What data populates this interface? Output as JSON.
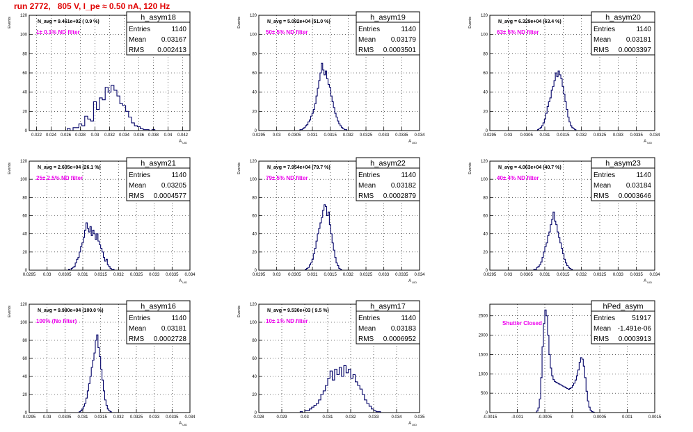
{
  "page": {
    "title": "run 2772,   805 V, I_pe ≈ 0.50 nA, 120 Hz"
  },
  "chart_data": [
    {
      "type": "bar",
      "histogram": "h_asym18",
      "stats": {
        "entries": "1140",
        "mean": "0.03167",
        "rms": "0.002413"
      },
      "navg_label": "N_avg = 9.461e+02 ( 0.9 %)",
      "filter_label": "1± 0.1% ND filter",
      "ylabel": "Events",
      "xlabel": "A_{UID}",
      "ylim": [
        0,
        120
      ],
      "yticks": [
        0,
        20,
        40,
        60,
        80,
        100,
        120
      ],
      "xlim": [
        0.021,
        0.043
      ],
      "xticks": [
        0.022,
        0.024,
        0.026,
        0.028,
        0.03,
        0.032,
        0.034,
        0.036,
        0.038,
        0.04,
        0.042
      ],
      "xtick_labels": [
        "0.022",
        "0.024",
        "0.026",
        "0.028",
        "0.03",
        "0.032",
        "0.034",
        "0.036",
        "0.038",
        "0.04",
        "0.042"
      ],
      "bin_start": 0.0262,
      "bin_width": 0.0004,
      "values": [
        2,
        0,
        3,
        3,
        7,
        5,
        15,
        12,
        10,
        30,
        22,
        34,
        32,
        45,
        40,
        47,
        42,
        36,
        28,
        26,
        20,
        14,
        8,
        5,
        4,
        2,
        1,
        1,
        0,
        1
      ]
    },
    {
      "type": "bar",
      "histogram": "h_asym19",
      "stats": {
        "entries": "1140",
        "mean": "0.03179",
        "rms": "0.0003501"
      },
      "navg_label": "N_avg = 5.092e+04 (51.0 %)",
      "filter_label": "50± 5% ND filter",
      "ylabel": "Events",
      "xlabel": "A_{UID}",
      "ylim": [
        0,
        120
      ],
      "yticks": [
        0,
        20,
        40,
        60,
        80,
        100,
        120
      ],
      "xlim": [
        0.0295,
        0.034
      ],
      "xticks": [
        0.0295,
        0.03,
        0.0305,
        0.031,
        0.0315,
        0.032,
        0.0325,
        0.033,
        0.0335,
        0.034
      ],
      "xtick_labels": [
        "0.0295",
        "0.03",
        "0.0305",
        "0.031",
        "0.0315",
        "0.032",
        "0.0325",
        "0.033",
        "0.0335",
        "0.034"
      ],
      "bin_start": 0.03065,
      "bin_width": 3.75e-05,
      "values": [
        1,
        1,
        2,
        3,
        5,
        6,
        9,
        11,
        15,
        18,
        22,
        28,
        36,
        44,
        52,
        60,
        70,
        63,
        58,
        62,
        54,
        48,
        45,
        36,
        30,
        24,
        18,
        14,
        10,
        7,
        5,
        3,
        2,
        1,
        1
      ]
    },
    {
      "type": "bar",
      "histogram": "h_asym20",
      "stats": {
        "entries": "1140",
        "mean": "0.03181",
        "rms": "0.0003397"
      },
      "navg_label": "N_avg = 6.329e+04 (63.4 %)",
      "filter_label": "63± 5% ND filter",
      "ylabel": "Events",
      "xlabel": "A_{UID}",
      "ylim": [
        0,
        120
      ],
      "yticks": [
        0,
        20,
        40,
        60,
        80,
        100,
        120
      ],
      "xlim": [
        0.0295,
        0.034
      ],
      "xticks": [
        0.0295,
        0.03,
        0.0305,
        0.031,
        0.0315,
        0.032,
        0.0325,
        0.033,
        0.0335,
        0.034
      ],
      "xtick_labels": [
        "0.0295",
        "0.03",
        "0.0305",
        "0.031",
        "0.0315",
        "0.032",
        "0.0325",
        "0.033",
        "0.0335",
        "0.034"
      ],
      "bin_start": 0.0308,
      "bin_width": 3.75e-05,
      "values": [
        1,
        2,
        3,
        5,
        8,
        12,
        18,
        25,
        30,
        34,
        42,
        46,
        52,
        60,
        56,
        62,
        58,
        54,
        46,
        38,
        30,
        22,
        14,
        9,
        5,
        3,
        2,
        1
      ]
    },
    {
      "type": "bar",
      "histogram": "h_asym21",
      "stats": {
        "entries": "1140",
        "mean": "0.03205",
        "rms": "0.0004577"
      },
      "navg_label": "N_avg = 2.605e+04 (26.1 %)",
      "filter_label": "25± 2.5% ND filter",
      "ylabel": "Events",
      "xlabel": "A_{UID}",
      "ylim": [
        0,
        120
      ],
      "yticks": [
        0,
        20,
        40,
        60,
        80,
        100,
        120
      ],
      "xlim": [
        0.0295,
        0.034
      ],
      "xticks": [
        0.0295,
        0.03,
        0.0305,
        0.031,
        0.0315,
        0.032,
        0.0325,
        0.033,
        0.0335,
        0.034
      ],
      "xtick_labels": [
        "0.0295",
        "0.03",
        "0.0305",
        "0.031",
        "0.0315",
        "0.032",
        "0.0325",
        "0.033",
        "0.0335",
        "0.034"
      ],
      "bin_start": 0.0306,
      "bin_width": 3.75e-05,
      "values": [
        1,
        0,
        2,
        3,
        4,
        8,
        12,
        14,
        20,
        26,
        30,
        36,
        44,
        52,
        46,
        42,
        48,
        38,
        44,
        40,
        34,
        40,
        32,
        28,
        24,
        20,
        14,
        10,
        12,
        6,
        4,
        2,
        1,
        1
      ]
    },
    {
      "type": "bar",
      "histogram": "h_asym22",
      "stats": {
        "entries": "1140",
        "mean": "0.03182",
        "rms": "0.0002879"
      },
      "navg_label": "N_avg = 7.954e+04 (79.7 %)",
      "filter_label": "79± 5% ND filter",
      "ylabel": "Events",
      "xlabel": "A_{UID}",
      "ylim": [
        0,
        120
      ],
      "yticks": [
        0,
        20,
        40,
        60,
        80,
        100,
        120
      ],
      "xlim": [
        0.0295,
        0.034
      ],
      "xticks": [
        0.0295,
        0.03,
        0.0305,
        0.031,
        0.0315,
        0.032,
        0.0325,
        0.033,
        0.0335,
        0.034
      ],
      "xtick_labels": [
        "0.0295",
        "0.03",
        "0.0305",
        "0.031",
        "0.0315",
        "0.032",
        "0.0325",
        "0.033",
        "0.0335",
        "0.034"
      ],
      "bin_start": 0.0308,
      "bin_width": 3.75e-05,
      "values": [
        1,
        2,
        3,
        6,
        8,
        12,
        18,
        24,
        32,
        40,
        46,
        52,
        58,
        66,
        72,
        70,
        60,
        64,
        50,
        40,
        30,
        22,
        14,
        8,
        5,
        2,
        1
      ]
    },
    {
      "type": "bar",
      "histogram": "h_asym23",
      "stats": {
        "entries": "1140",
        "mean": "0.03184",
        "rms": "0.0003646"
      },
      "navg_label": "N_avg = 4.063e+04 (40.7 %)",
      "filter_label": "40± 4% ND filter",
      "ylabel": "Events",
      "xlabel": "A_{UID}",
      "ylim": [
        0,
        120
      ],
      "yticks": [
        0,
        20,
        40,
        60,
        80,
        100,
        120
      ],
      "xlim": [
        0.0295,
        0.034
      ],
      "xticks": [
        0.0295,
        0.03,
        0.0305,
        0.031,
        0.0315,
        0.032,
        0.0325,
        0.033,
        0.0335,
        0.034
      ],
      "xtick_labels": [
        "0.0295",
        "0.03",
        "0.0305",
        "0.031",
        "0.0315",
        "0.032",
        "0.0325",
        "0.033",
        "0.0335",
        "0.034"
      ],
      "bin_start": 0.0307,
      "bin_width": 3.75e-05,
      "values": [
        1,
        1,
        3,
        4,
        6,
        9,
        14,
        20,
        26,
        30,
        38,
        42,
        50,
        56,
        64,
        54,
        50,
        42,
        36,
        30,
        24,
        18,
        12,
        8,
        5,
        3,
        2,
        1
      ]
    },
    {
      "type": "bar",
      "histogram": "h_asym16",
      "stats": {
        "entries": "1140",
        "mean": "0.03181",
        "rms": "0.0002728"
      },
      "navg_label": "N_avg = 9.980e+04 (100.0 %)",
      "filter_label": "100% (No filter)",
      "ylabel": "Events",
      "xlabel": "A_{UID}",
      "ylim": [
        0,
        120
      ],
      "yticks": [
        0,
        20,
        40,
        60,
        80,
        100,
        120
      ],
      "xlim": [
        0.0295,
        0.034
      ],
      "xticks": [
        0.0295,
        0.03,
        0.0305,
        0.031,
        0.0315,
        0.032,
        0.0325,
        0.033,
        0.0335,
        0.034
      ],
      "xtick_labels": [
        "0.0295",
        "0.03",
        "0.0305",
        "0.031",
        "0.0315",
        "0.032",
        "0.0325",
        "0.033",
        "0.0335",
        "0.034"
      ],
      "bin_start": 0.0309,
      "bin_width": 3.75e-05,
      "values": [
        1,
        2,
        4,
        7,
        10,
        16,
        24,
        32,
        40,
        50,
        58,
        66,
        80,
        86,
        72,
        62,
        48,
        36,
        24,
        14,
        8,
        4,
        2,
        1
      ]
    },
    {
      "type": "bar",
      "histogram": "h_asym17",
      "stats": {
        "entries": "1140",
        "mean": "0.03183",
        "rms": "0.0006952"
      },
      "navg_label": "N_avg = 9.530e+03 ( 9.5 %)",
      "filter_label": "10± 1% ND filter",
      "ylabel": "Events",
      "xlabel": "A_{UID}",
      "ylim": [
        0,
        120
      ],
      "yticks": [
        0,
        20,
        40,
        60,
        80,
        100,
        120
      ],
      "xlim": [
        0.028,
        0.035
      ],
      "xticks": [
        0.028,
        0.029,
        0.03,
        0.031,
        0.032,
        0.033,
        0.034,
        0.035
      ],
      "xtick_labels": [
        "0.028",
        "0.029",
        "0.03",
        "0.031",
        "0.032",
        "0.033",
        "0.034",
        "0.035"
      ],
      "bin_start": 0.0298,
      "bin_width": 0.0001,
      "values": [
        1,
        0,
        2,
        2,
        4,
        6,
        8,
        10,
        14,
        20,
        24,
        30,
        38,
        46,
        36,
        48,
        42,
        50,
        40,
        52,
        44,
        48,
        38,
        42,
        34,
        30,
        26,
        20,
        14,
        10,
        7,
        4,
        2,
        1,
        1
      ]
    },
    {
      "type": "bar",
      "histogram": "hPed_asym",
      "stats": {
        "entries": "51917",
        "mean": "-1.491e-06",
        "rms": "0.0003913"
      },
      "filter_label": "Shutter Closed",
      "ylabel": "",
      "xlabel": "",
      "ylim": [
        0,
        2800
      ],
      "yticks": [
        0,
        500,
        1000,
        1500,
        2000,
        2500
      ],
      "xlim": [
        -0.0015,
        0.0015
      ],
      "xticks": [
        -0.0015,
        -0.001,
        -0.0005,
        0,
        0.0005,
        0.001,
        0.0015
      ],
      "xtick_labels": [
        "-0.0015",
        "-0.001",
        "-0.0005",
        "0",
        "0.0005",
        "0.001",
        "0.0015"
      ],
      "bin_start": -0.00065,
      "bin_width": 2.5e-05,
      "values": [
        40,
        120,
        350,
        900,
        1700,
        2300,
        2650,
        2500,
        2000,
        1500,
        1150,
        950,
        850,
        800,
        780,
        760,
        740,
        720,
        700,
        680,
        660,
        640,
        620,
        600,
        620,
        650,
        700,
        760,
        840,
        950,
        1100,
        1300,
        1420,
        1380,
        1200,
        900,
        550,
        300,
        140,
        60,
        25,
        10
      ]
    }
  ]
}
